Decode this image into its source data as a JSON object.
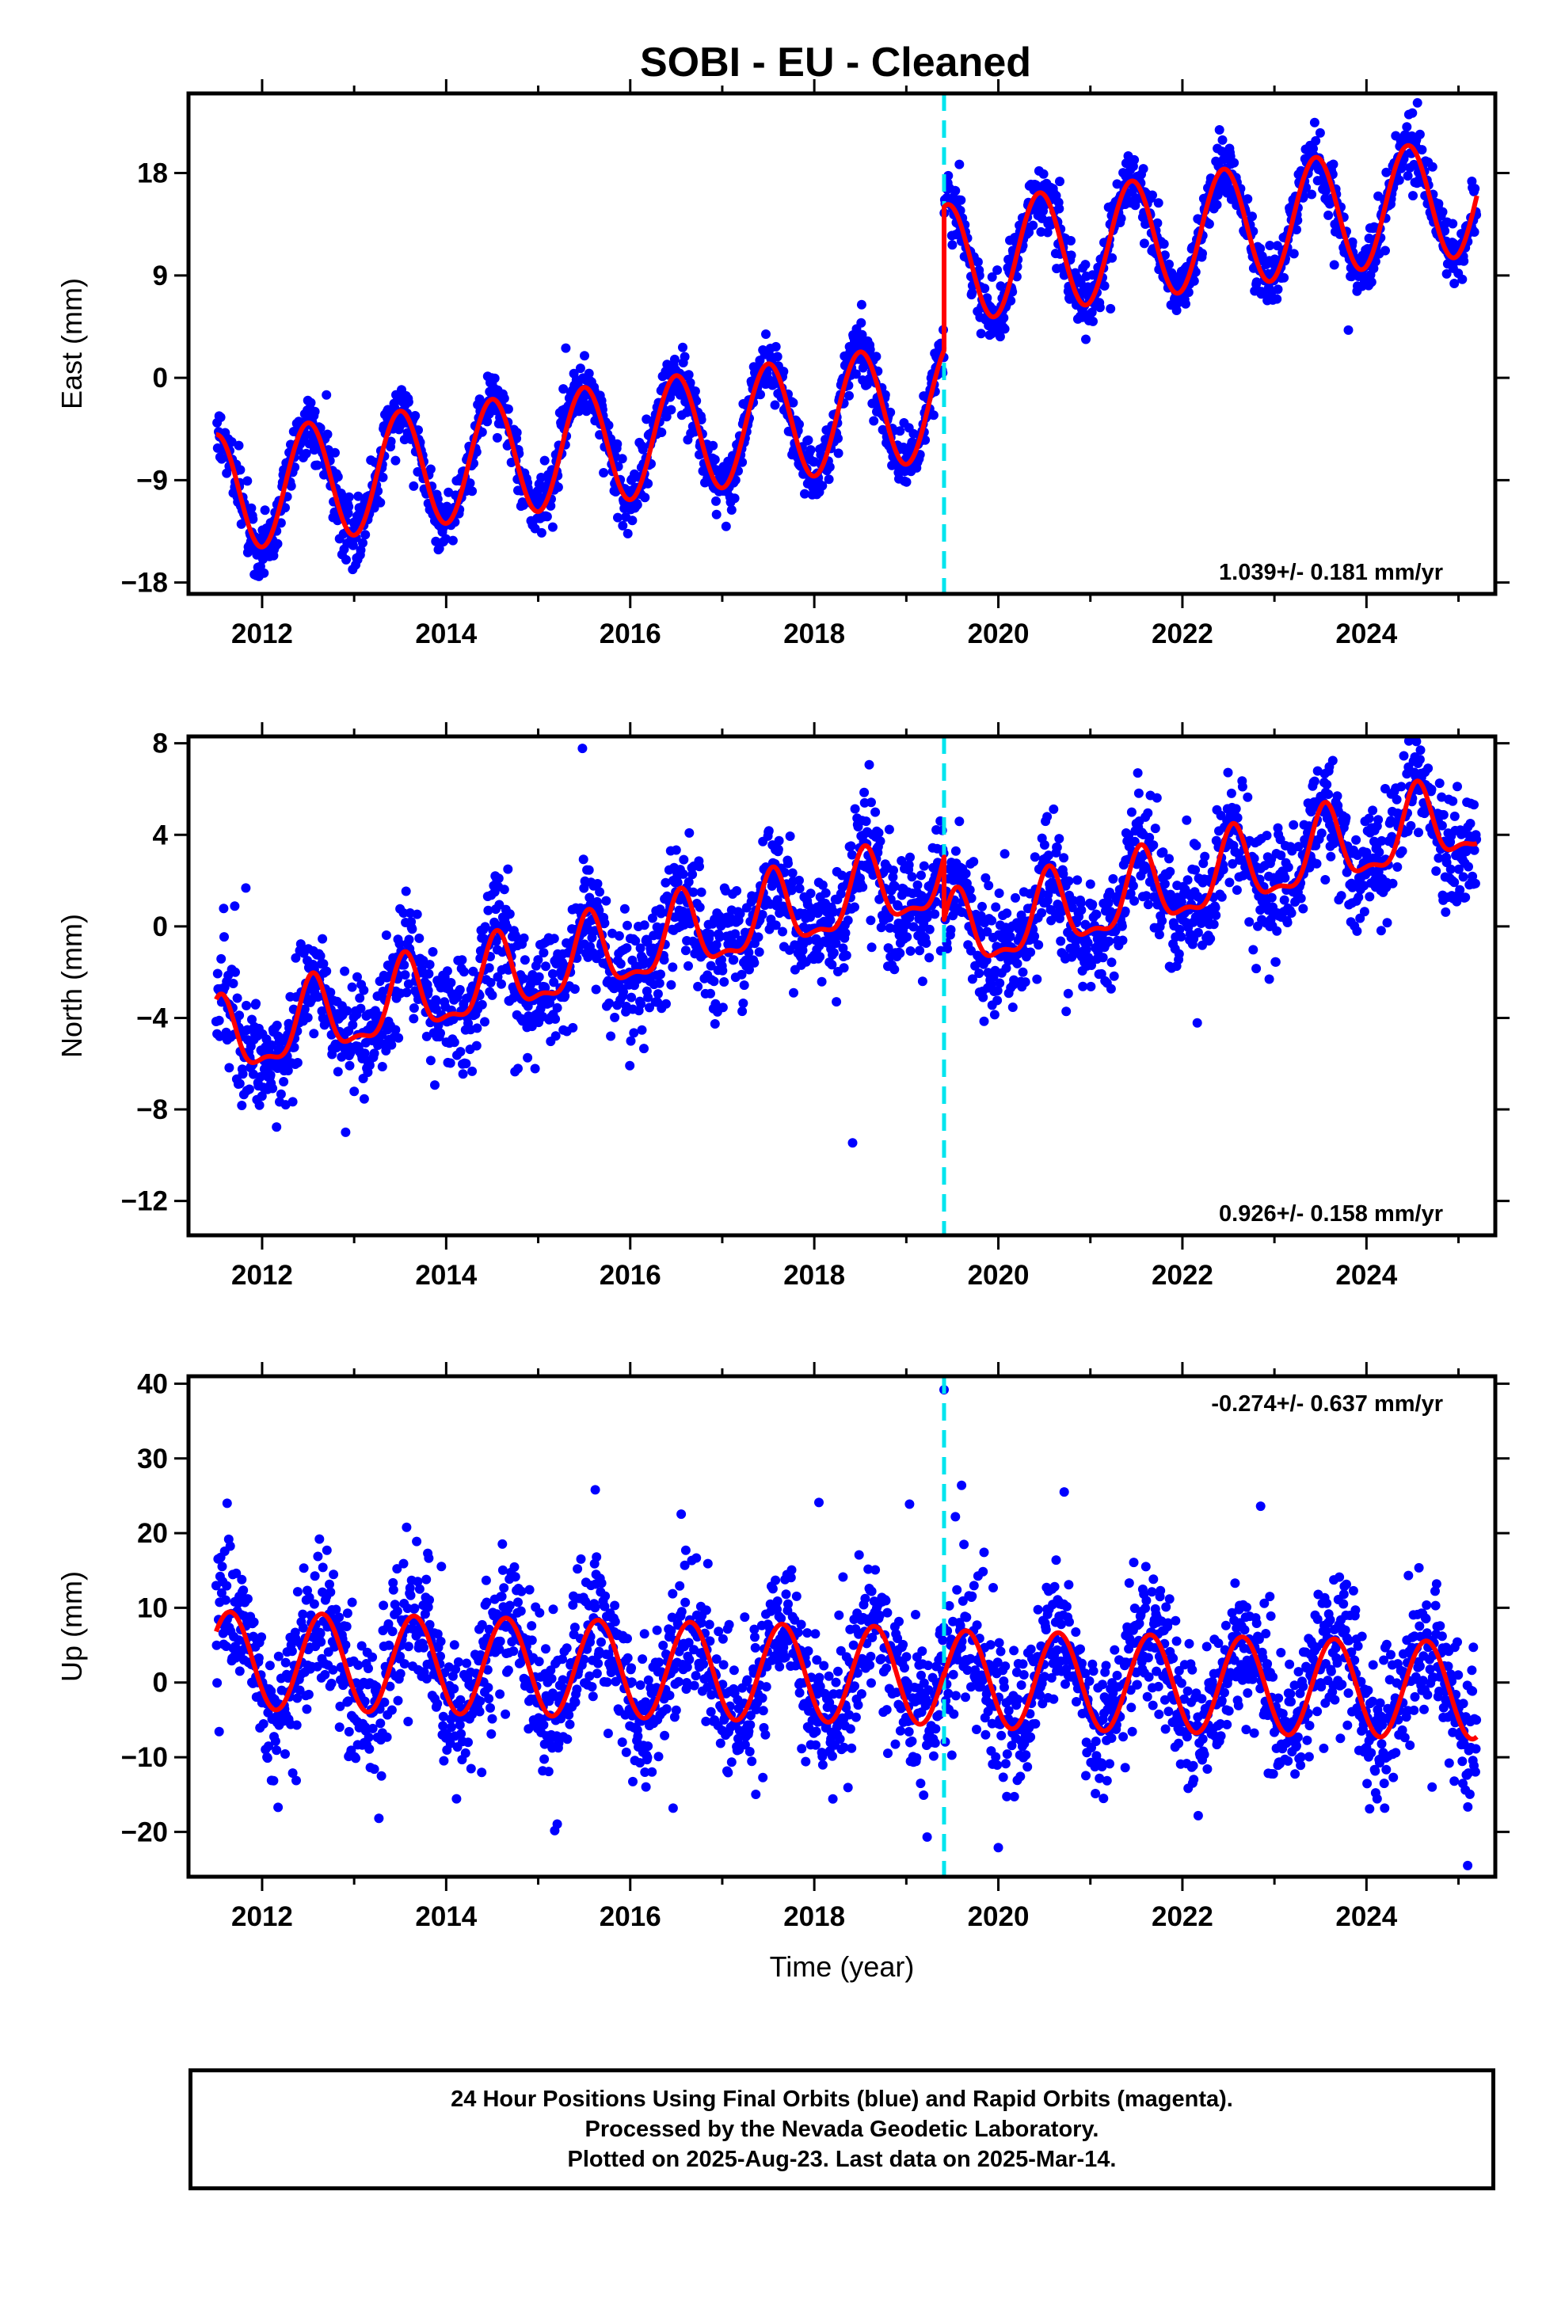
{
  "title": "SOBI  - EU - Cleaned",
  "colors": {
    "points": "#0000ff",
    "model": "#ff0000",
    "offset_line": "#00e5ee",
    "frame": "#000000"
  },
  "footer": {
    "line1": "24 Hour Positions Using Final Orbits (blue) and Rapid Orbits (magenta).",
    "line2": "Processed by the Nevada Geodetic Laboratory.",
    "line3": "Plotted on 2025-Aug-23. Last data on 2025-Mar-14."
  },
  "chart_data": [
    {
      "type": "scatter",
      "name": "east",
      "ylabel": "East (mm)",
      "xlabel": "",
      "xlim": [
        2011.2,
        2025.4
      ],
      "ylim": [
        -19,
        25
      ],
      "yticks": [
        -18,
        -9,
        0,
        9,
        18
      ],
      "xticks": [
        2012,
        2014,
        2016,
        2018,
        2020,
        2022,
        2024
      ],
      "rate_label": "1.039+/- 0.181 mm/yr",
      "rate_position": "bottom-right",
      "offset_epoch": 2019.41,
      "data_start": 2011.5,
      "data_end": 2025.2,
      "model": {
        "pre_offset": {
          "intercept_at_2011_5": -10.2,
          "rate": 1.039,
          "annual_amplitude": 5.2,
          "annual_peak": 2012.5
        },
        "post_offset": {
          "value_at_2019_42": 10.0,
          "rate": 1.039,
          "annual_amplitude": 5.2,
          "annual_peak": 2020.45
        },
        "scatter_sigma": 1.3
      }
    },
    {
      "type": "scatter",
      "name": "north",
      "ylabel": "North (mm)",
      "xlabel": "",
      "xlim": [
        2011.2,
        2025.4
      ],
      "ylim": [
        -13.5,
        8.3
      ],
      "yticks": [
        -12,
        -8,
        -4,
        0,
        4,
        8
      ],
      "xticks": [
        2012,
        2014,
        2016,
        2018,
        2020,
        2022,
        2024
      ],
      "rate_label": "0.926+/- 0.158 mm/yr",
      "rate_position": "bottom-right",
      "offset_epoch": 2019.41,
      "data_start": 2011.5,
      "data_end": 2025.2,
      "model": {
        "pre_offset": {
          "intercept_at_2011_5": -5.2,
          "rate": 0.926,
          "annual_amplitude": 1.6,
          "annual_peak": 2012.55,
          "semiannual_amplitude": 0.6
        },
        "post_offset": {
          "value_at_2019_42": -0.6,
          "rate": 0.926,
          "annual_amplitude": 1.6,
          "annual_peak": 2020.55,
          "semiannual_amplitude": 0.6
        },
        "scatter_sigma": 1.2
      }
    },
    {
      "type": "scatter",
      "name": "up",
      "ylabel": "Up (mm)",
      "xlabel": "Time (year)",
      "xlim": [
        2011.2,
        2025.4
      ],
      "ylim": [
        -26,
        41
      ],
      "yticks": [
        -20,
        -10,
        0,
        10,
        20,
        30,
        40
      ],
      "xticks": [
        2012,
        2014,
        2016,
        2018,
        2020,
        2022,
        2024
      ],
      "rate_label": "-0.274+/- 0.637 mm/yr",
      "rate_position": "top-right",
      "offset_epoch": 2019.41,
      "data_start": 2011.5,
      "data_end": 2025.2,
      "model": {
        "pre_offset": {
          "intercept_at_2011_5": 3.0,
          "rate": -0.274,
          "annual_amplitude": 6.5,
          "annual_peak": 2011.65
        },
        "post_offset": {
          "value_at_2019_42": 0.5,
          "rate": -0.274,
          "annual_amplitude": 6.5,
          "annual_peak": 2020.65
        },
        "scatter_sigma": 4.5
      },
      "outliers": [
        [
          2019.41,
          39.2
        ],
        [
          2011.62,
          24.0
        ],
        [
          2015.62,
          25.8
        ],
        [
          2019.6,
          26.4
        ],
        [
          2022.85,
          23.6
        ],
        [
          2018.05,
          24.1
        ],
        [
          2020.0,
          -22.1
        ],
        [
          2025.1,
          -24.5
        ]
      ]
    }
  ]
}
